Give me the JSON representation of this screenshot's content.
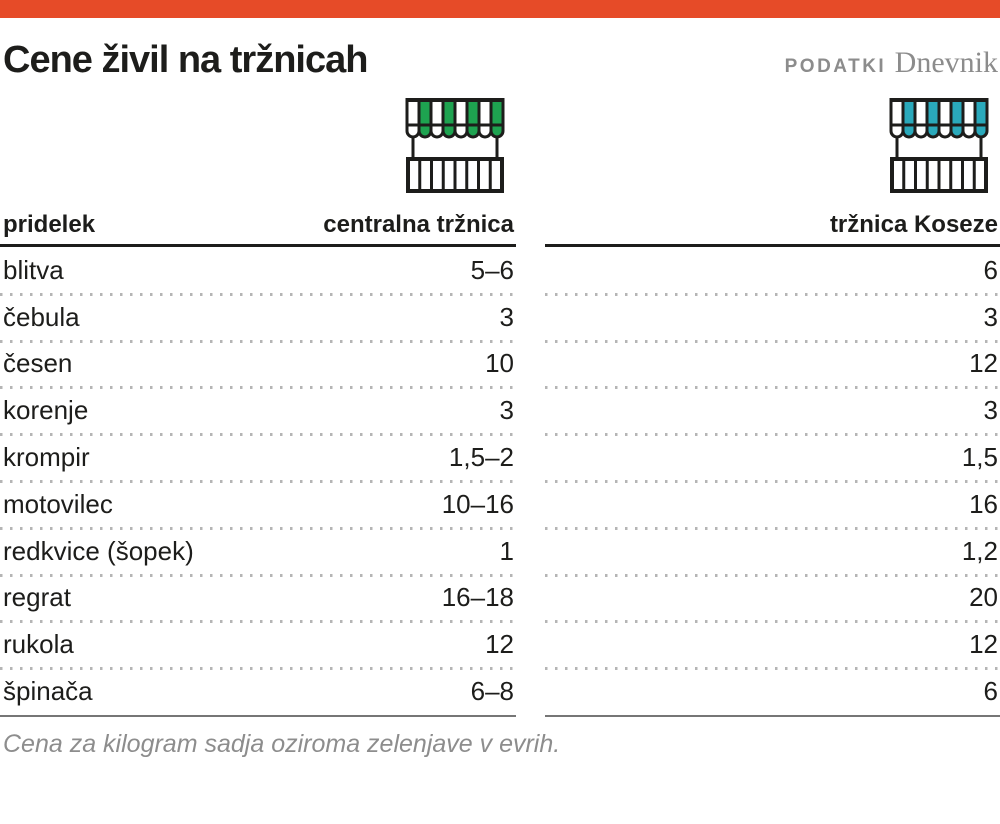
{
  "accent_bar": {
    "color": "#e64b28"
  },
  "header": {
    "title": "Cene živil na tržnicah",
    "brand_podatki": "PODATKI",
    "brand_dnevnik": "Dnevnik"
  },
  "icons": {
    "outline_color": "#1d1d1b",
    "left_market": {
      "name": "market-stall-icon-green",
      "stripe_color": "#1ea350"
    },
    "right_market": {
      "name": "market-stall-icon-teal",
      "stripe_color": "#2aa9bb"
    }
  },
  "chart_data": {
    "type": "table",
    "title": "Cene živil na tržnicah",
    "columns": [
      "pridelek",
      "centralna tržnica",
      "tržnica Koseze"
    ],
    "rows": [
      {
        "pridelek": "blitva",
        "centralna_trznica": "5–6",
        "trznica_koseze": "6"
      },
      {
        "pridelek": "čebula",
        "centralna_trznica": "3",
        "trznica_koseze": "3"
      },
      {
        "pridelek": "česen",
        "centralna_trznica": "10",
        "trznica_koseze": "12"
      },
      {
        "pridelek": "korenje",
        "centralna_trznica": "3",
        "trznica_koseze": "3"
      },
      {
        "pridelek": "krompir",
        "centralna_trznica": "1,5–2",
        "trznica_koseze": "1,5"
      },
      {
        "pridelek": "motovilec",
        "centralna_trznica": "10–16",
        "trznica_koseze": "16"
      },
      {
        "pridelek": "redkvice (šopek)",
        "centralna_trznica": "1",
        "trznica_koseze": "1,2"
      },
      {
        "pridelek": "regrat",
        "centralna_trznica": "16–18",
        "trznica_koseze": "20"
      },
      {
        "pridelek": "rukola",
        "centralna_trznica": "12",
        "trznica_koseze": "12"
      },
      {
        "pridelek": "špinača",
        "centralna_trznica": "6–8",
        "trznica_koseze": "6"
      }
    ],
    "note": "Cena za kilogram sadja oziroma zelenjave v evrih.",
    "units": "EUR/kg",
    "legend_position": "none",
    "grid": "dotted-row-separators"
  }
}
